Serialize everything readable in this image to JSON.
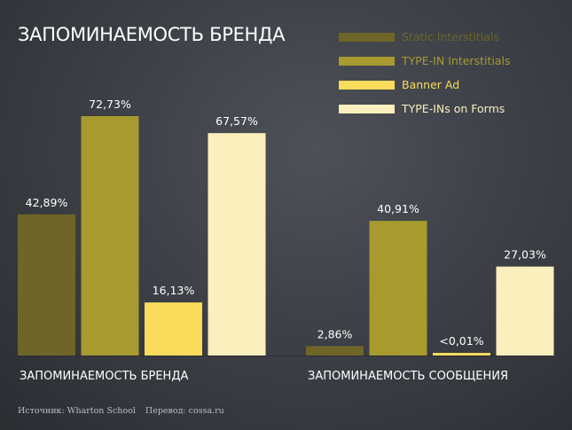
{
  "chart_data": {
    "type": "bar",
    "title": "ЗАПОМИНАЕМОСТЬ БРЕНДА",
    "categories": [
      "ЗАПОМИНАЕМОСТЬ БРЕНДА",
      "ЗАПОМИНАЕМОСТЬ СООБЩЕНИЯ"
    ],
    "series": [
      {
        "name": "Static Interstitials",
        "color": "#6f6528",
        "values": [
          42.89,
          2.86
        ],
        "labels": [
          "42,89%",
          "2,86%"
        ]
      },
      {
        "name": "TYPE-IN Interstitials",
        "color": "#a79a2e",
        "values": [
          72.73,
          40.91
        ],
        "labels": [
          "72,73%",
          "40,91%"
        ]
      },
      {
        "name": "Banner Ad",
        "color": "#f8dc5a",
        "values": [
          16.13,
          0.01
        ],
        "labels": [
          "16,13%",
          "<0,01%"
        ]
      },
      {
        "name": "TYPE-INs on Forms",
        "color": "#fbefbd",
        "values": [
          67.57,
          27.03
        ],
        "labels": [
          "67,57%",
          "27,03%"
        ]
      }
    ],
    "ylim": [
      0,
      100
    ],
    "grid": false,
    "legend": "top-right",
    "xlabel": "",
    "ylabel": ""
  },
  "source": {
    "origin": "Источник: Wharton School",
    "translation": "Перевод: cossa.ru"
  }
}
